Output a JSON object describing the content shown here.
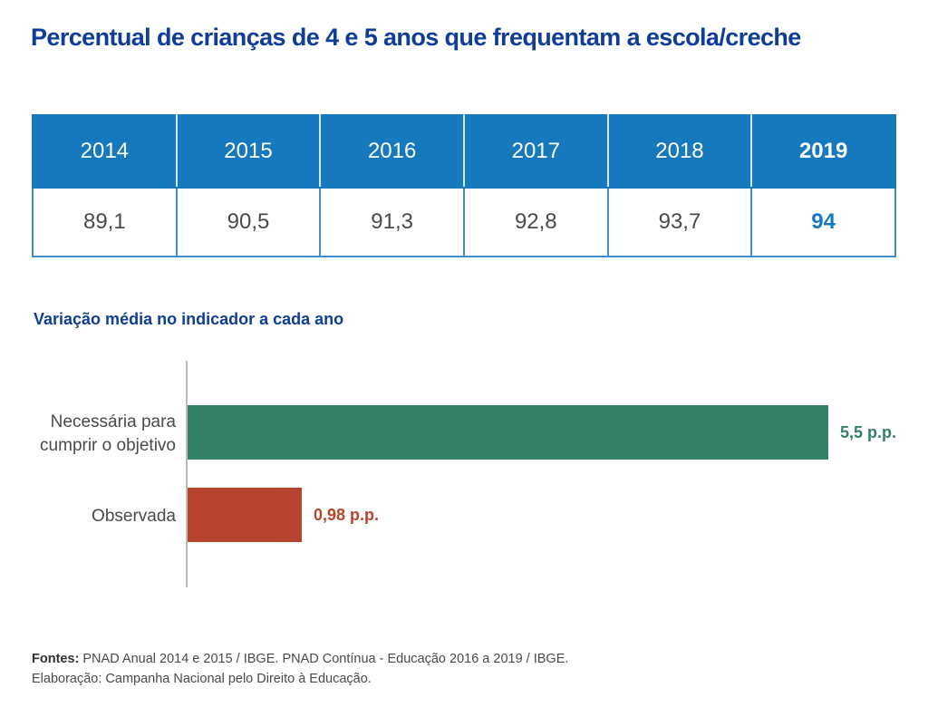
{
  "title": "Percentual de crianças de 4 e 5 anos que frequentam a escola/creche",
  "table": {
    "years": [
      "2014",
      "2015",
      "2016",
      "2017",
      "2018",
      "2019"
    ],
    "values": [
      "89,1",
      "90,5",
      "91,3",
      "92,8",
      "93,7",
      "94"
    ],
    "highlight_index": 5,
    "header_color": "#1679bd",
    "highlight_color": "#1679bd"
  },
  "subtitle": "Variação média no indicador a cada ano",
  "chart_data": [
    {
      "type": "table",
      "title": "Percentual de crianças de 4 e 5 anos que frequentam a escola/creche",
      "categories": [
        "2014",
        "2015",
        "2016",
        "2017",
        "2018",
        "2019"
      ],
      "values": [
        89.1,
        90.5,
        91.3,
        92.8,
        93.7,
        94
      ]
    },
    {
      "type": "bar",
      "orientation": "horizontal",
      "title": "Variação média no indicador a cada ano",
      "categories": [
        "Necessária para cumprir o objetivo",
        "Observada"
      ],
      "category_lines": [
        [
          "Necessária para",
          "cumprir o objetivo"
        ],
        [
          "Observada"
        ]
      ],
      "values": [
        5.5,
        0.98
      ],
      "value_labels": [
        "5,5 p.p.",
        "0,98 p.p."
      ],
      "colors": [
        "#338169",
        "#b6442e"
      ],
      "unit": "p.p.",
      "xlim": [
        0,
        5.5
      ],
      "grid": false,
      "legend": "none"
    }
  ],
  "footer": {
    "sources_label": "Fontes:",
    "sources_text": " PNAD Anual 2014 e 2015 / IBGE. PNAD Contínua - Educação 2016 a 2019 / IBGE.",
    "credit": "Elaboração: Campanha Nacional pelo Direito à Educação."
  }
}
